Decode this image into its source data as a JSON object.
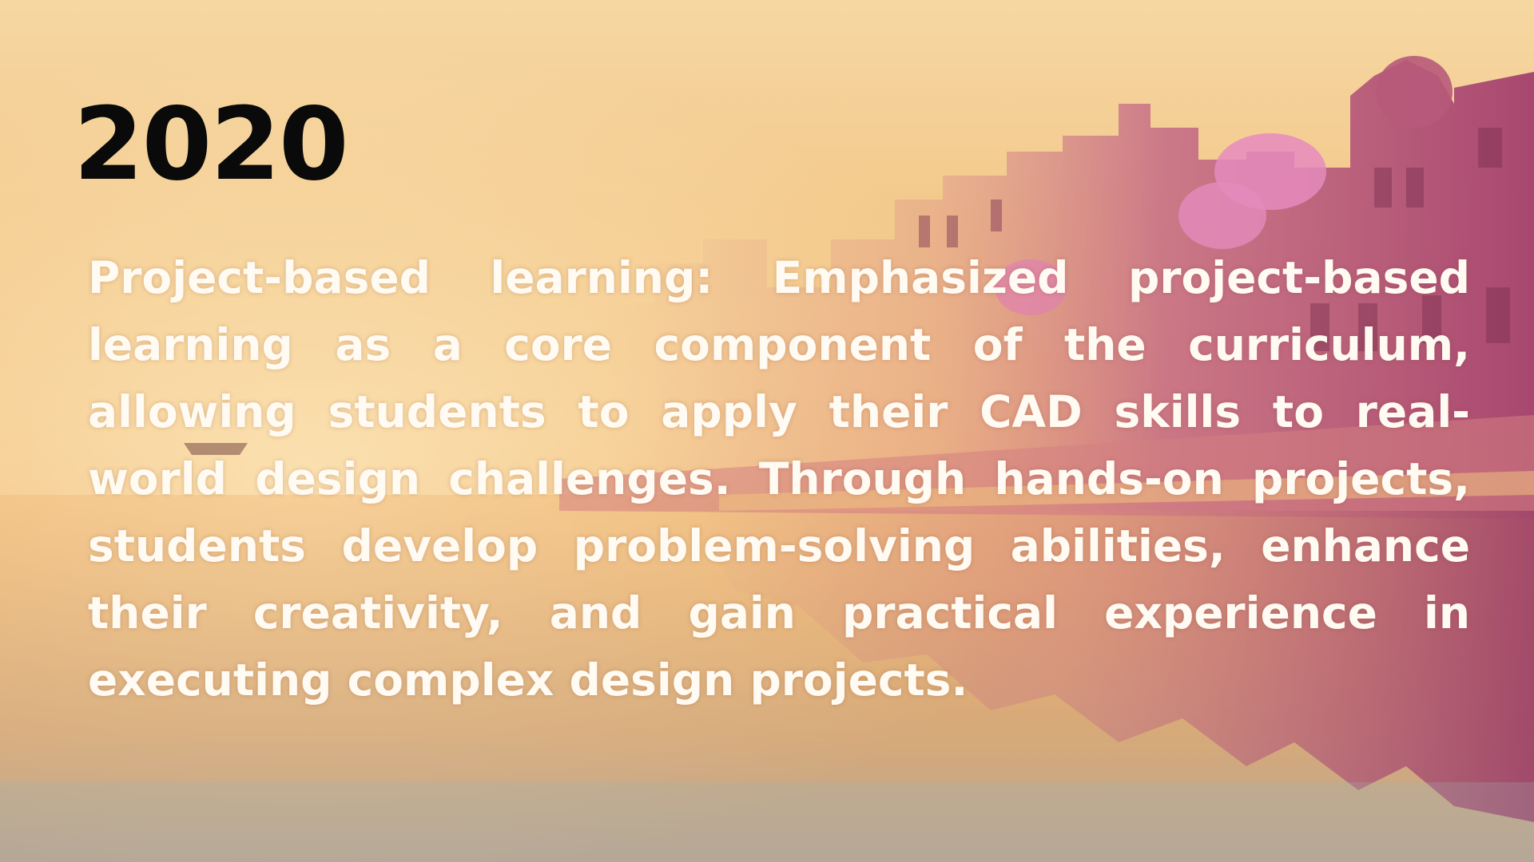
{
  "slide": {
    "year": "2020",
    "body": "Project-based learning: Emphasized project-based learning as a core component of the curriculum, allowing students to apply their CAD skills to real-world design challenges. Through hands-on projects, students develop problem-solving abilities, enhance their creativity, and gain practical experience in executing complex design projects."
  },
  "background": {
    "subject": "riverside-city-ghats-photo",
    "colors": {
      "sky": "#f6d7a2",
      "haze": "#f2bf7c",
      "buildings": "#c46a86",
      "accent_pink": "#e77fb3",
      "water": "#e7a866",
      "text": "#fffaf2",
      "title": "#0a0a0a"
    }
  }
}
